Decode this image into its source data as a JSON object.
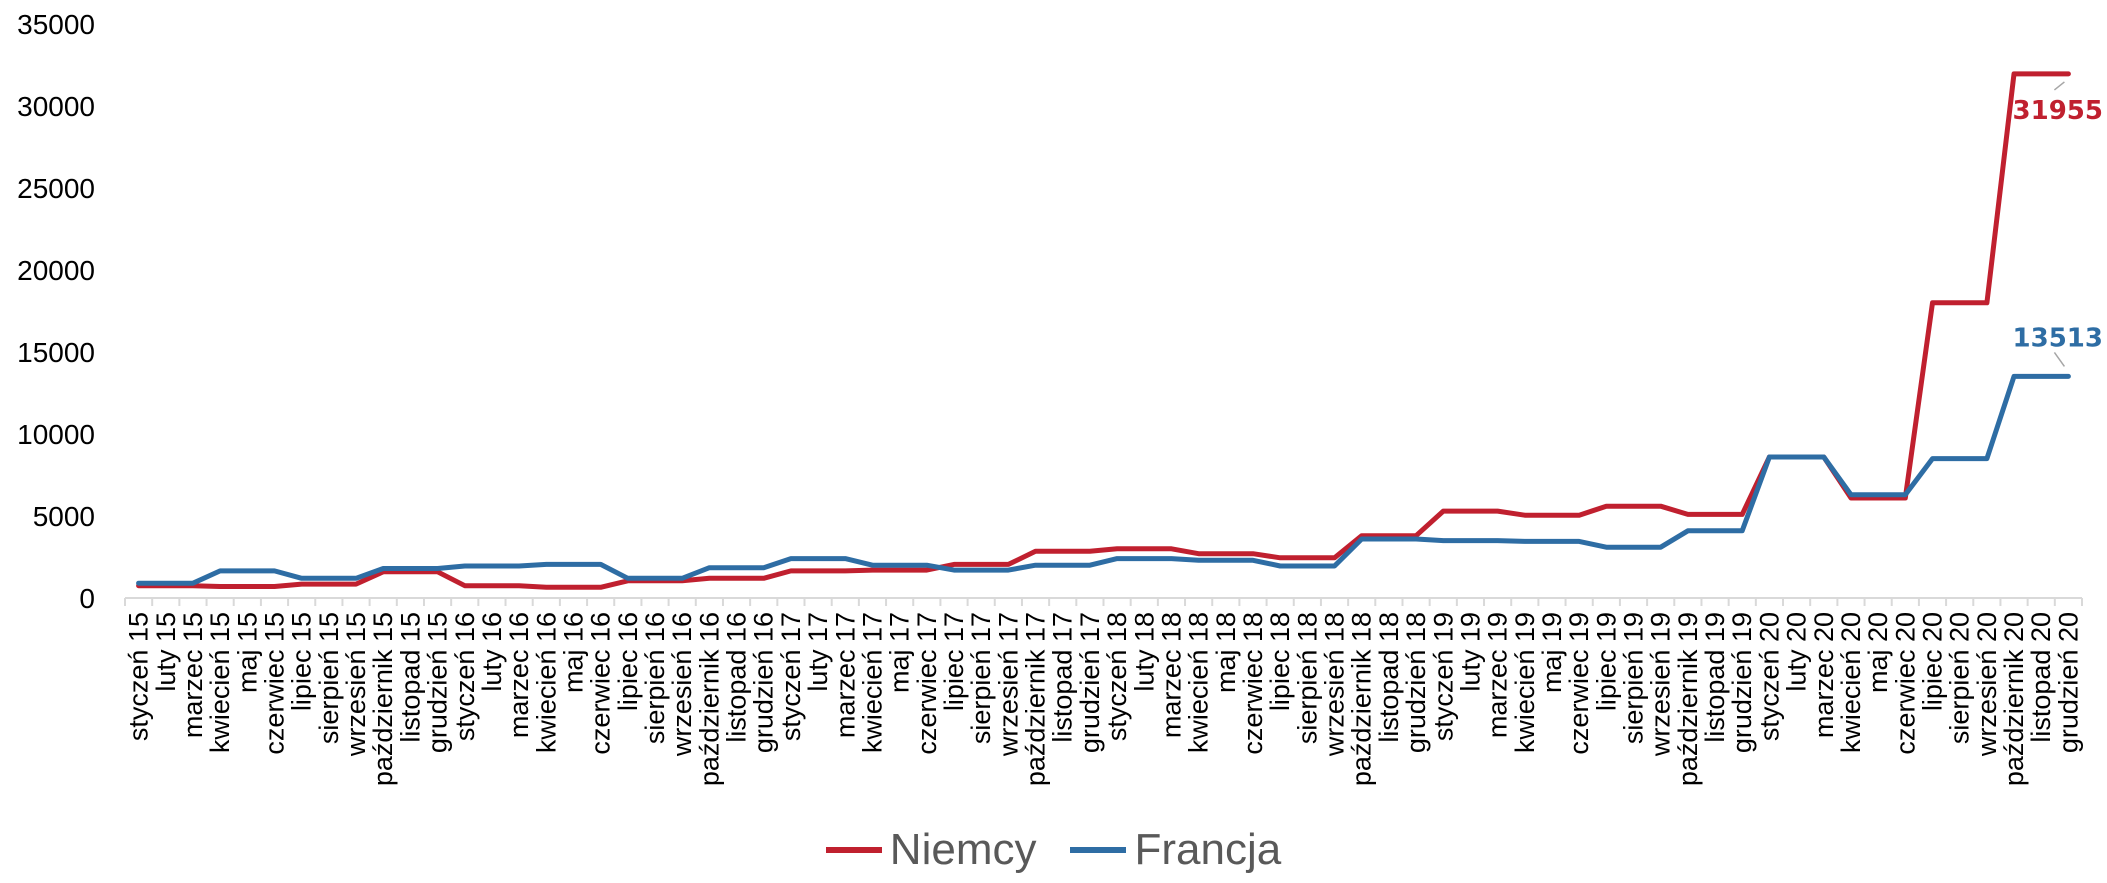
{
  "chart_data": {
    "type": "line",
    "title": "",
    "xlabel": "",
    "ylabel": "",
    "ylim": [
      0,
      35000
    ],
    "yticks": [
      0,
      5000,
      10000,
      15000,
      20000,
      25000,
      30000,
      35000
    ],
    "grid": false,
    "legend_position": "bottom",
    "categories": [
      "styczeń 15",
      "luty 15",
      "marzec 15",
      "kwiecień 15",
      "maj 15",
      "czerwiec 15",
      "lipiec 15",
      "sierpień 15",
      "wrzesień 15",
      "październik 15",
      "listopad 15",
      "grudzień 15",
      "styczeń 16",
      "luty 16",
      "marzec 16",
      "kwiecień 16",
      "maj 16",
      "czerwiec 16",
      "lipiec 16",
      "sierpień 16",
      "wrzesień 16",
      "październik 16",
      "listopad 16",
      "grudzień 16",
      "styczeń 17",
      "luty 17",
      "marzec 17",
      "kwiecień 17",
      "maj 17",
      "czerwiec 17",
      "lipiec 17",
      "sierpień 17",
      "wrzesień 17",
      "październik 17",
      "listopad 17",
      "grudzień 17",
      "styczeń 18",
      "luty 18",
      "marzec 18",
      "kwiecień 18",
      "maj 18",
      "czerwiec 18",
      "lipiec 18",
      "sierpień 18",
      "wrzesień 18",
      "październik 18",
      "listopad 18",
      "grudzień 18",
      "styczeń 19",
      "luty 19",
      "marzec 19",
      "kwiecień 19",
      "maj 19",
      "czerwiec 19",
      "lipiec 19",
      "sierpień 19",
      "wrzesień 19",
      "październik 19",
      "listopad 19",
      "grudzień 19",
      "styczeń 20",
      "luty 20",
      "marzec 20",
      "kwiecień 20",
      "maj 20",
      "czerwiec 20",
      "lipiec 20",
      "sierpień 20",
      "wrzesień 20",
      "październik 20",
      "listopad 20",
      "grudzień 20"
    ],
    "series": [
      {
        "name": "Niemcy",
        "color": "#C0202F",
        "values": [
          750,
          750,
          750,
          700,
          700,
          700,
          850,
          850,
          850,
          1600,
          1600,
          1600,
          750,
          750,
          750,
          650,
          650,
          650,
          1050,
          1050,
          1050,
          1200,
          1200,
          1200,
          1650,
          1650,
          1650,
          1700,
          1700,
          1700,
          2050,
          2050,
          2050,
          2850,
          2850,
          2850,
          3000,
          3000,
          3000,
          2700,
          2700,
          2700,
          2450,
          2450,
          2450,
          3800,
          3800,
          3800,
          5300,
          5300,
          5300,
          5050,
          5050,
          5050,
          5600,
          5600,
          5600,
          5100,
          5100,
          5100,
          8600,
          8600,
          8600,
          6100,
          6100,
          6100,
          18000,
          18000,
          18000,
          31955,
          31955,
          31955
        ],
        "end_label": "31955"
      },
      {
        "name": "Francja",
        "color": "#2E6DA4",
        "values": [
          900,
          900,
          900,
          1650,
          1650,
          1650,
          1200,
          1200,
          1200,
          1800,
          1800,
          1800,
          1950,
          1950,
          1950,
          2050,
          2050,
          2050,
          1200,
          1200,
          1200,
          1850,
          1850,
          1850,
          2400,
          2400,
          2400,
          2000,
          2000,
          2000,
          1700,
          1700,
          1700,
          2000,
          2000,
          2000,
          2400,
          2400,
          2400,
          2300,
          2300,
          2300,
          1950,
          1950,
          1950,
          3600,
          3600,
          3600,
          3500,
          3500,
          3500,
          3450,
          3450,
          3450,
          3100,
          3100,
          3100,
          4100,
          4100,
          4100,
          8600,
          8600,
          8600,
          6300,
          6300,
          6300,
          8500,
          8500,
          8500,
          13513,
          13513,
          13513
        ],
        "end_label": "13513"
      }
    ]
  },
  "legend": {
    "items": [
      {
        "label": "Niemcy",
        "color": "#C0202F"
      },
      {
        "label": "Francja",
        "color": "#2E6DA4"
      }
    ]
  }
}
